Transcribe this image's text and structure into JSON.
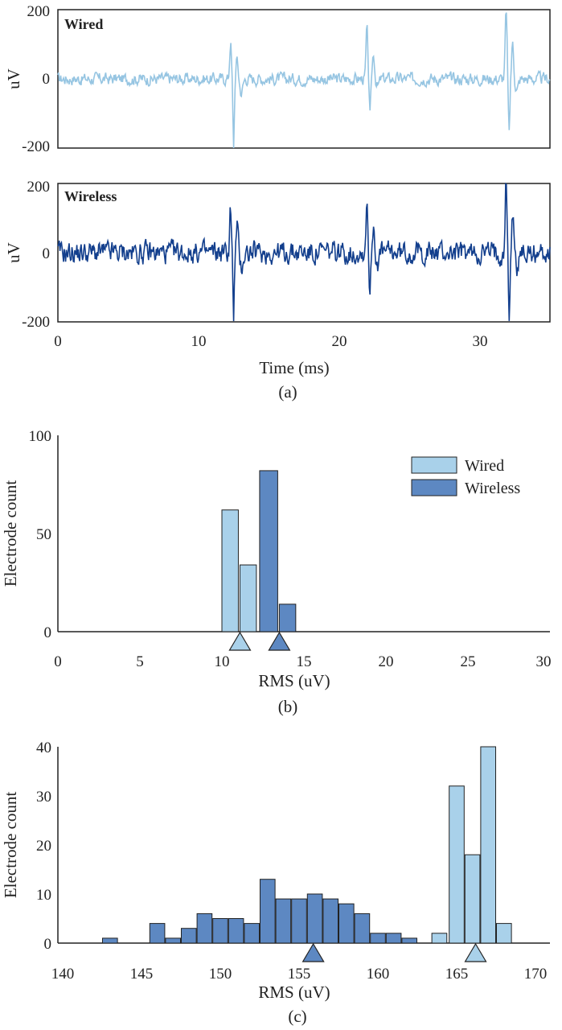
{
  "colors": {
    "wired": "#a9d1ea",
    "wireless_line": "#133f8d",
    "wired_line": "#96c5e2",
    "wireless_bar": "#5d88c2",
    "axis": "#222222"
  },
  "chart_data": [
    {
      "panel": "a-top",
      "type": "line",
      "title": "Wired",
      "ylabel": "uV",
      "xlabel": "",
      "xlim": [
        0,
        35
      ],
      "ylim": [
        -200,
        200
      ],
      "yticks": [
        "200",
        "0",
        "-200"
      ],
      "spikes": [
        {
          "t": 12.5,
          "peak_pos": 105,
          "peak_neg": -200
        },
        {
          "t": 22.2,
          "peak_pos": 140,
          "peak_neg": -110
        },
        {
          "t": 32.1,
          "peak_pos": 190,
          "peak_neg": -165
        }
      ]
    },
    {
      "panel": "a-bottom",
      "type": "line",
      "title": "Wireless",
      "ylabel": "uV",
      "xlabel": "Time (ms)",
      "caption": "(a)",
      "xlim": [
        0,
        35
      ],
      "ylim": [
        -200,
        200
      ],
      "yticks": [
        "200",
        "0",
        "-200"
      ],
      "xticks": [
        "0",
        "10",
        "20",
        "30"
      ],
      "spikes": [
        {
          "t": 12.5,
          "peak_pos": 130,
          "peak_neg": -200
        },
        {
          "t": 22.2,
          "peak_pos": 150,
          "peak_neg": -130
        },
        {
          "t": 32.1,
          "peak_pos": 210,
          "peak_neg": -200
        }
      ]
    },
    {
      "panel": "b",
      "type": "bar",
      "xlabel": "RMS (uV)",
      "ylabel": "Electrode count",
      "caption": "(b)",
      "xlim": [
        0,
        30
      ],
      "ylim": [
        0,
        100
      ],
      "xticks": [
        "0",
        "5",
        "10",
        "15",
        "20",
        "25",
        "30"
      ],
      "yticks": [
        "100",
        "50",
        "0"
      ],
      "legend": [
        "Wired",
        "Wireless"
      ],
      "series": [
        {
          "name": "Wired",
          "bins": [
            [
              10.0,
              11.1
            ],
            [
              11.1,
              12.2
            ]
          ],
          "values": [
            62,
            34
          ],
          "median": 11.1
        },
        {
          "name": "Wireless",
          "bins": [
            [
              12.3,
              13.5
            ],
            [
              13.5,
              14.6
            ]
          ],
          "values": [
            82,
            14
          ],
          "median": 13.5
        }
      ]
    },
    {
      "panel": "c",
      "type": "bar",
      "xlabel": "RMS (uV)",
      "ylabel": "Electrode count",
      "caption": "(c)",
      "xlim": [
        140,
        170
      ],
      "ylim": [
        0,
        40
      ],
      "xticks": [
        "140",
        "145",
        "150",
        "155",
        "160",
        "165",
        "170"
      ],
      "yticks": [
        "40",
        "30",
        "20",
        "10",
        "0"
      ],
      "series": [
        {
          "name": "Wireless",
          "x": [
            141,
            143,
            146,
            147,
            148,
            149,
            150,
            151,
            152,
            153,
            154,
            155,
            156,
            157,
            158,
            159,
            160,
            161,
            162,
            163,
            164
          ],
          "values": [
            0,
            1,
            4,
            1,
            3,
            6,
            5,
            5,
            4,
            13,
            9,
            9,
            10,
            9,
            8,
            6,
            2,
            2,
            1,
            0,
            0
          ],
          "median": 155.9
        },
        {
          "name": "Wired",
          "x": [
            163.9,
            165,
            166,
            167,
            168
          ],
          "values": [
            2,
            32,
            18,
            40,
            4
          ],
          "median": 166.2
        }
      ]
    }
  ]
}
